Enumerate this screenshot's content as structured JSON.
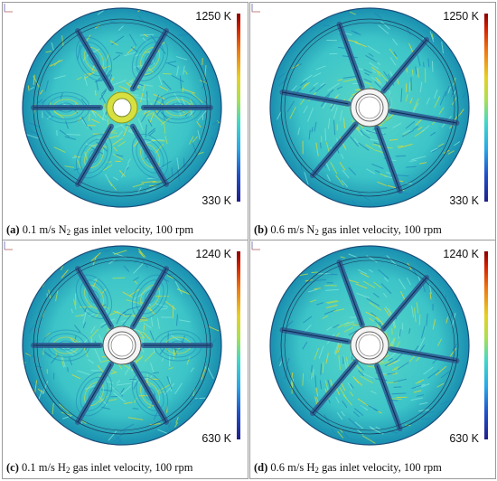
{
  "panels": [
    {
      "id": "a",
      "letter": "(a)",
      "caption_prefix": "0.1 m/s N",
      "subscript": "2",
      "caption_suffix": "gas inlet velocity, 100 rpm",
      "temp_max": "1250 K",
      "temp_min": "330 K",
      "hub": "hot-ring",
      "field": "vortex"
    },
    {
      "id": "b",
      "letter": "(b)",
      "caption_prefix": "0.6 m/s N",
      "subscript": "2",
      "caption_suffix": "gas inlet velocity, 100 rpm",
      "temp_max": "1250 K",
      "temp_min": "330 K",
      "hub": "white-ring",
      "field": "streak"
    },
    {
      "id": "c",
      "letter": "(c)",
      "caption_prefix": "0.1 m/s H",
      "subscript": "2",
      "caption_suffix": "gas inlet velocity, 100 rpm",
      "temp_max": "1240 K",
      "temp_min": "630 K",
      "hub": "white-ring",
      "field": "vortex"
    },
    {
      "id": "d",
      "letter": "(d)",
      "caption_prefix": "0.6 m/s H",
      "subscript": "2",
      "caption_suffix": "gas inlet velocity, 100 rpm",
      "temp_max": "1240 K",
      "temp_min": "630 K",
      "hub": "white-ring",
      "field": "streak"
    }
  ],
  "colors": {
    "disk_base": "#3cc4c8",
    "disk_dark": "#1a8fb0",
    "blade": "#2f5f96",
    "hot": "#e8d82a",
    "warm": "#b8e04a"
  }
}
